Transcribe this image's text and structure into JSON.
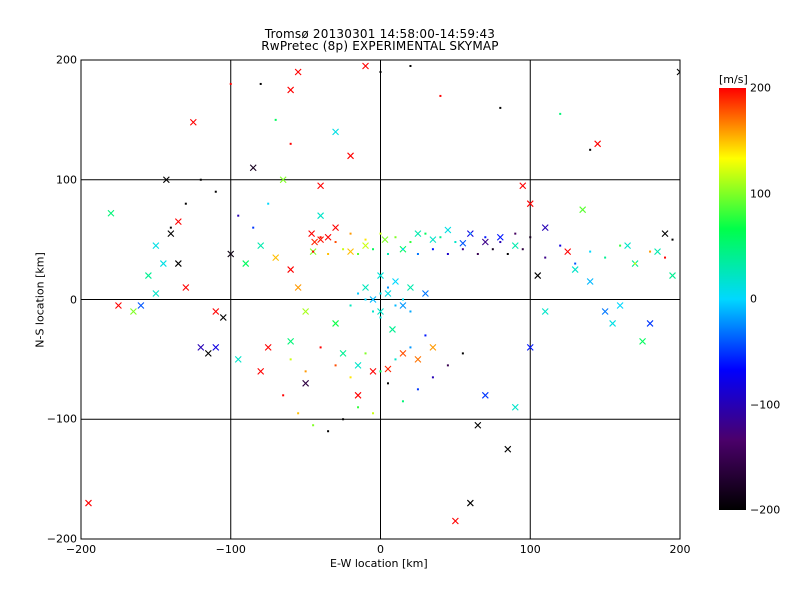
{
  "chart_data": {
    "type": "scatter",
    "title": "Tromsø 20130301 14:58:00-14:59:43",
    "subtitle": "RwPretec (8p) EXPERIMENTAL SKYMAP",
    "xlabel": "E-W location [km]",
    "ylabel": "N-S location [km]",
    "xlim": [
      -200,
      200
    ],
    "ylim": [
      -200,
      200
    ],
    "x_ticks": [
      -200,
      -100,
      0,
      100,
      200
    ],
    "y_ticks": [
      -200,
      -100,
      0,
      100,
      200
    ],
    "x_tick_labels": [
      "−200",
      "−100",
      "0",
      "100",
      "200"
    ],
    "y_tick_labels": [
      "−200",
      "−100",
      "0",
      "100",
      "200"
    ],
    "grid": true,
    "colorbar": {
      "label": "[m/s]",
      "range": [
        -200,
        200
      ],
      "ticks": [
        200,
        100,
        0,
        -100,
        -200
      ],
      "tick_labels": [
        "200",
        "100",
        "0",
        "−100",
        "−200"
      ],
      "colormap": [
        "#000000",
        "#4b006b",
        "#0000ff",
        "#00d8ff",
        "#00ff4a",
        "#ffff00",
        "#ff0000"
      ]
    },
    "series": [
      {
        "marker": "x",
        "points": [
          [
            -46,
            55,
            200
          ],
          [
            -40,
            50,
            195
          ],
          [
            -44,
            48,
            190
          ],
          [
            -35,
            52,
            205
          ],
          [
            -20,
            40,
            150
          ],
          [
            -10,
            45,
            120
          ],
          [
            3,
            50,
            100
          ],
          [
            15,
            42,
            60
          ],
          [
            25,
            55,
            30
          ],
          [
            35,
            50,
            20
          ],
          [
            45,
            58,
            10
          ],
          [
            55,
            47,
            -40
          ],
          [
            60,
            55,
            -80
          ],
          [
            70,
            48,
            -120
          ],
          [
            80,
            52,
            -60
          ],
          [
            90,
            45,
            30
          ],
          [
            -100,
            38,
            -190
          ],
          [
            -80,
            45,
            30
          ],
          [
            -90,
            30,
            60
          ],
          [
            -70,
            35,
            150
          ],
          [
            -60,
            25,
            200
          ],
          [
            -55,
            10,
            160
          ],
          [
            -50,
            -10,
            110
          ],
          [
            -30,
            -20,
            70
          ],
          [
            -25,
            -45,
            40
          ],
          [
            -15,
            -55,
            20
          ],
          [
            -5,
            -60,
            200
          ],
          [
            5,
            -58,
            190
          ],
          [
            15,
            -45,
            180
          ],
          [
            25,
            -50,
            170
          ],
          [
            35,
            -40,
            160
          ],
          [
            0,
            -10,
            20
          ],
          [
            5,
            5,
            10
          ],
          [
            -5,
            0,
            -10
          ],
          [
            10,
            15,
            0
          ],
          [
            15,
            -5,
            -20
          ],
          [
            20,
            10,
            30
          ],
          [
            0,
            20,
            15
          ],
          [
            -10,
            10,
            25
          ],
          [
            8,
            -25,
            40
          ],
          [
            30,
            5,
            -30
          ],
          [
            130,
            25,
            20
          ],
          [
            140,
            15,
            -10
          ],
          [
            150,
            -10,
            -30
          ],
          [
            155,
            -20,
            10
          ],
          [
            160,
            -5,
            0
          ],
          [
            170,
            30,
            40
          ],
          [
            165,
            45,
            20
          ],
          [
            180,
            -20,
            -50
          ],
          [
            -175,
            -5,
            200
          ],
          [
            -180,
            72,
            50
          ],
          [
            -160,
            -5,
            -40
          ],
          [
            -150,
            5,
            20
          ],
          [
            -145,
            30,
            10
          ],
          [
            -135,
            30,
            -200
          ],
          [
            -130,
            10,
            200
          ],
          [
            -120,
            -40,
            -100
          ],
          [
            -115,
            -45,
            -200
          ],
          [
            -110,
            -10,
            200
          ],
          [
            -150,
            45,
            10
          ],
          [
            -155,
            20,
            40
          ],
          [
            -140,
            55,
            -200
          ],
          [
            -143,
            100,
            -200
          ],
          [
            -135,
            65,
            200
          ],
          [
            -125,
            148,
            200
          ],
          [
            -105,
            -15,
            -200
          ],
          [
            -95,
            -50,
            20
          ],
          [
            -40,
            70,
            20
          ],
          [
            -45,
            40,
            100
          ],
          [
            -30,
            60,
            200
          ],
          [
            -80,
            -60,
            200
          ],
          [
            -85,
            110,
            -180
          ],
          [
            -60,
            -35,
            50
          ],
          [
            -75,
            -40,
            200
          ],
          [
            -65,
            100,
            100
          ],
          [
            -30,
            140,
            10
          ],
          [
            -20,
            120,
            200
          ],
          [
            -10,
            195,
            200
          ],
          [
            -15,
            -80,
            200
          ],
          [
            -40,
            95,
            200
          ],
          [
            -50,
            -70,
            -160
          ],
          [
            -60,
            175,
            200
          ],
          [
            -55,
            190,
            200
          ],
          [
            50,
            -185,
            200
          ],
          [
            60,
            -170,
            -200
          ],
          [
            65,
            -105,
            -200
          ],
          [
            70,
            -80,
            -50
          ],
          [
            85,
            -125,
            -200
          ],
          [
            90,
            -90,
            20
          ],
          [
            100,
            -40,
            -60
          ],
          [
            110,
            -10,
            20
          ],
          [
            110,
            60,
            -100
          ],
          [
            100,
            80,
            200
          ],
          [
            95,
            95,
            200
          ],
          [
            105,
            20,
            -200
          ],
          [
            125,
            40,
            200
          ],
          [
            135,
            75,
            90
          ],
          [
            145,
            130,
            200
          ],
          [
            175,
            -35,
            60
          ],
          [
            190,
            55,
            -200
          ],
          [
            185,
            40,
            30
          ],
          [
            195,
            20,
            40
          ],
          [
            200,
            190,
            -200
          ],
          [
            -195,
            -170,
            200
          ],
          [
            -110,
            -40,
            -80
          ],
          [
            -165,
            -10,
            100
          ]
        ]
      },
      {
        "marker": "dot",
        "points": [
          [
            -40,
            52,
            195
          ],
          [
            -30,
            48,
            180
          ],
          [
            -20,
            55,
            160
          ],
          [
            -10,
            50,
            140
          ],
          [
            0,
            55,
            120
          ],
          [
            10,
            52,
            100
          ],
          [
            20,
            48,
            80
          ],
          [
            30,
            55,
            60
          ],
          [
            40,
            52,
            40
          ],
          [
            50,
            48,
            20
          ],
          [
            60,
            55,
            -20
          ],
          [
            70,
            52,
            -60
          ],
          [
            80,
            48,
            -100
          ],
          [
            90,
            55,
            -140
          ],
          [
            100,
            52,
            -180
          ],
          [
            -45,
            40,
            200
          ],
          [
            -35,
            38,
            150
          ],
          [
            -25,
            42,
            120
          ],
          [
            -15,
            38,
            90
          ],
          [
            -5,
            42,
            60
          ],
          [
            5,
            38,
            30
          ],
          [
            15,
            42,
            0
          ],
          [
            25,
            38,
            -30
          ],
          [
            35,
            42,
            -60
          ],
          [
            45,
            38,
            -90
          ],
          [
            55,
            42,
            -120
          ],
          [
            65,
            38,
            -150
          ],
          [
            75,
            42,
            -180
          ],
          [
            85,
            38,
            -200
          ],
          [
            95,
            42,
            -160
          ],
          [
            -10,
            0,
            0
          ],
          [
            0,
            5,
            10
          ],
          [
            10,
            -5,
            -10
          ],
          [
            -5,
            -10,
            20
          ],
          [
            5,
            10,
            -20
          ],
          [
            15,
            0,
            5
          ],
          [
            -15,
            5,
            -5
          ],
          [
            0,
            -15,
            15
          ],
          [
            20,
            -10,
            -15
          ],
          [
            -20,
            -5,
            25
          ],
          [
            110,
            35,
            -120
          ],
          [
            120,
            45,
            -80
          ],
          [
            130,
            30,
            -40
          ],
          [
            140,
            40,
            0
          ],
          [
            150,
            35,
            40
          ],
          [
            160,
            45,
            80
          ],
          [
            170,
            30,
            120
          ],
          [
            180,
            40,
            160
          ],
          [
            190,
            35,
            200
          ],
          [
            195,
            50,
            -200
          ],
          [
            -60,
            -50,
            120
          ],
          [
            -50,
            -60,
            160
          ],
          [
            -40,
            -40,
            200
          ],
          [
            -30,
            -55,
            180
          ],
          [
            -20,
            -65,
            140
          ],
          [
            -10,
            -45,
            100
          ],
          [
            0,
            -60,
            60
          ],
          [
            10,
            -50,
            20
          ],
          [
            20,
            -40,
            -20
          ],
          [
            30,
            -30,
            -60
          ],
          [
            -100,
            180,
            200
          ],
          [
            -80,
            180,
            -200
          ],
          [
            -70,
            150,
            60
          ],
          [
            -60,
            130,
            200
          ],
          [
            0,
            190,
            -200
          ],
          [
            20,
            195,
            -200
          ],
          [
            40,
            170,
            200
          ],
          [
            80,
            160,
            -200
          ],
          [
            120,
            155,
            50
          ],
          [
            140,
            125,
            -200
          ],
          [
            -140,
            60,
            -200
          ],
          [
            -130,
            80,
            -200
          ],
          [
            -120,
            100,
            -200
          ],
          [
            -110,
            90,
            -200
          ],
          [
            -95,
            70,
            -100
          ],
          [
            -85,
            60,
            -50
          ],
          [
            -75,
            80,
            0
          ],
          [
            -65,
            -80,
            200
          ],
          [
            -55,
            -95,
            150
          ],
          [
            -45,
            -105,
            100
          ],
          [
            -35,
            -110,
            -200
          ],
          [
            -25,
            -100,
            -200
          ],
          [
            -15,
            -90,
            80
          ],
          [
            -5,
            -95,
            120
          ],
          [
            5,
            -70,
            -200
          ],
          [
            15,
            -85,
            50
          ],
          [
            25,
            -75,
            -50
          ],
          [
            35,
            -65,
            -100
          ],
          [
            45,
            -55,
            -150
          ],
          [
            55,
            -45,
            -200
          ]
        ]
      }
    ]
  }
}
